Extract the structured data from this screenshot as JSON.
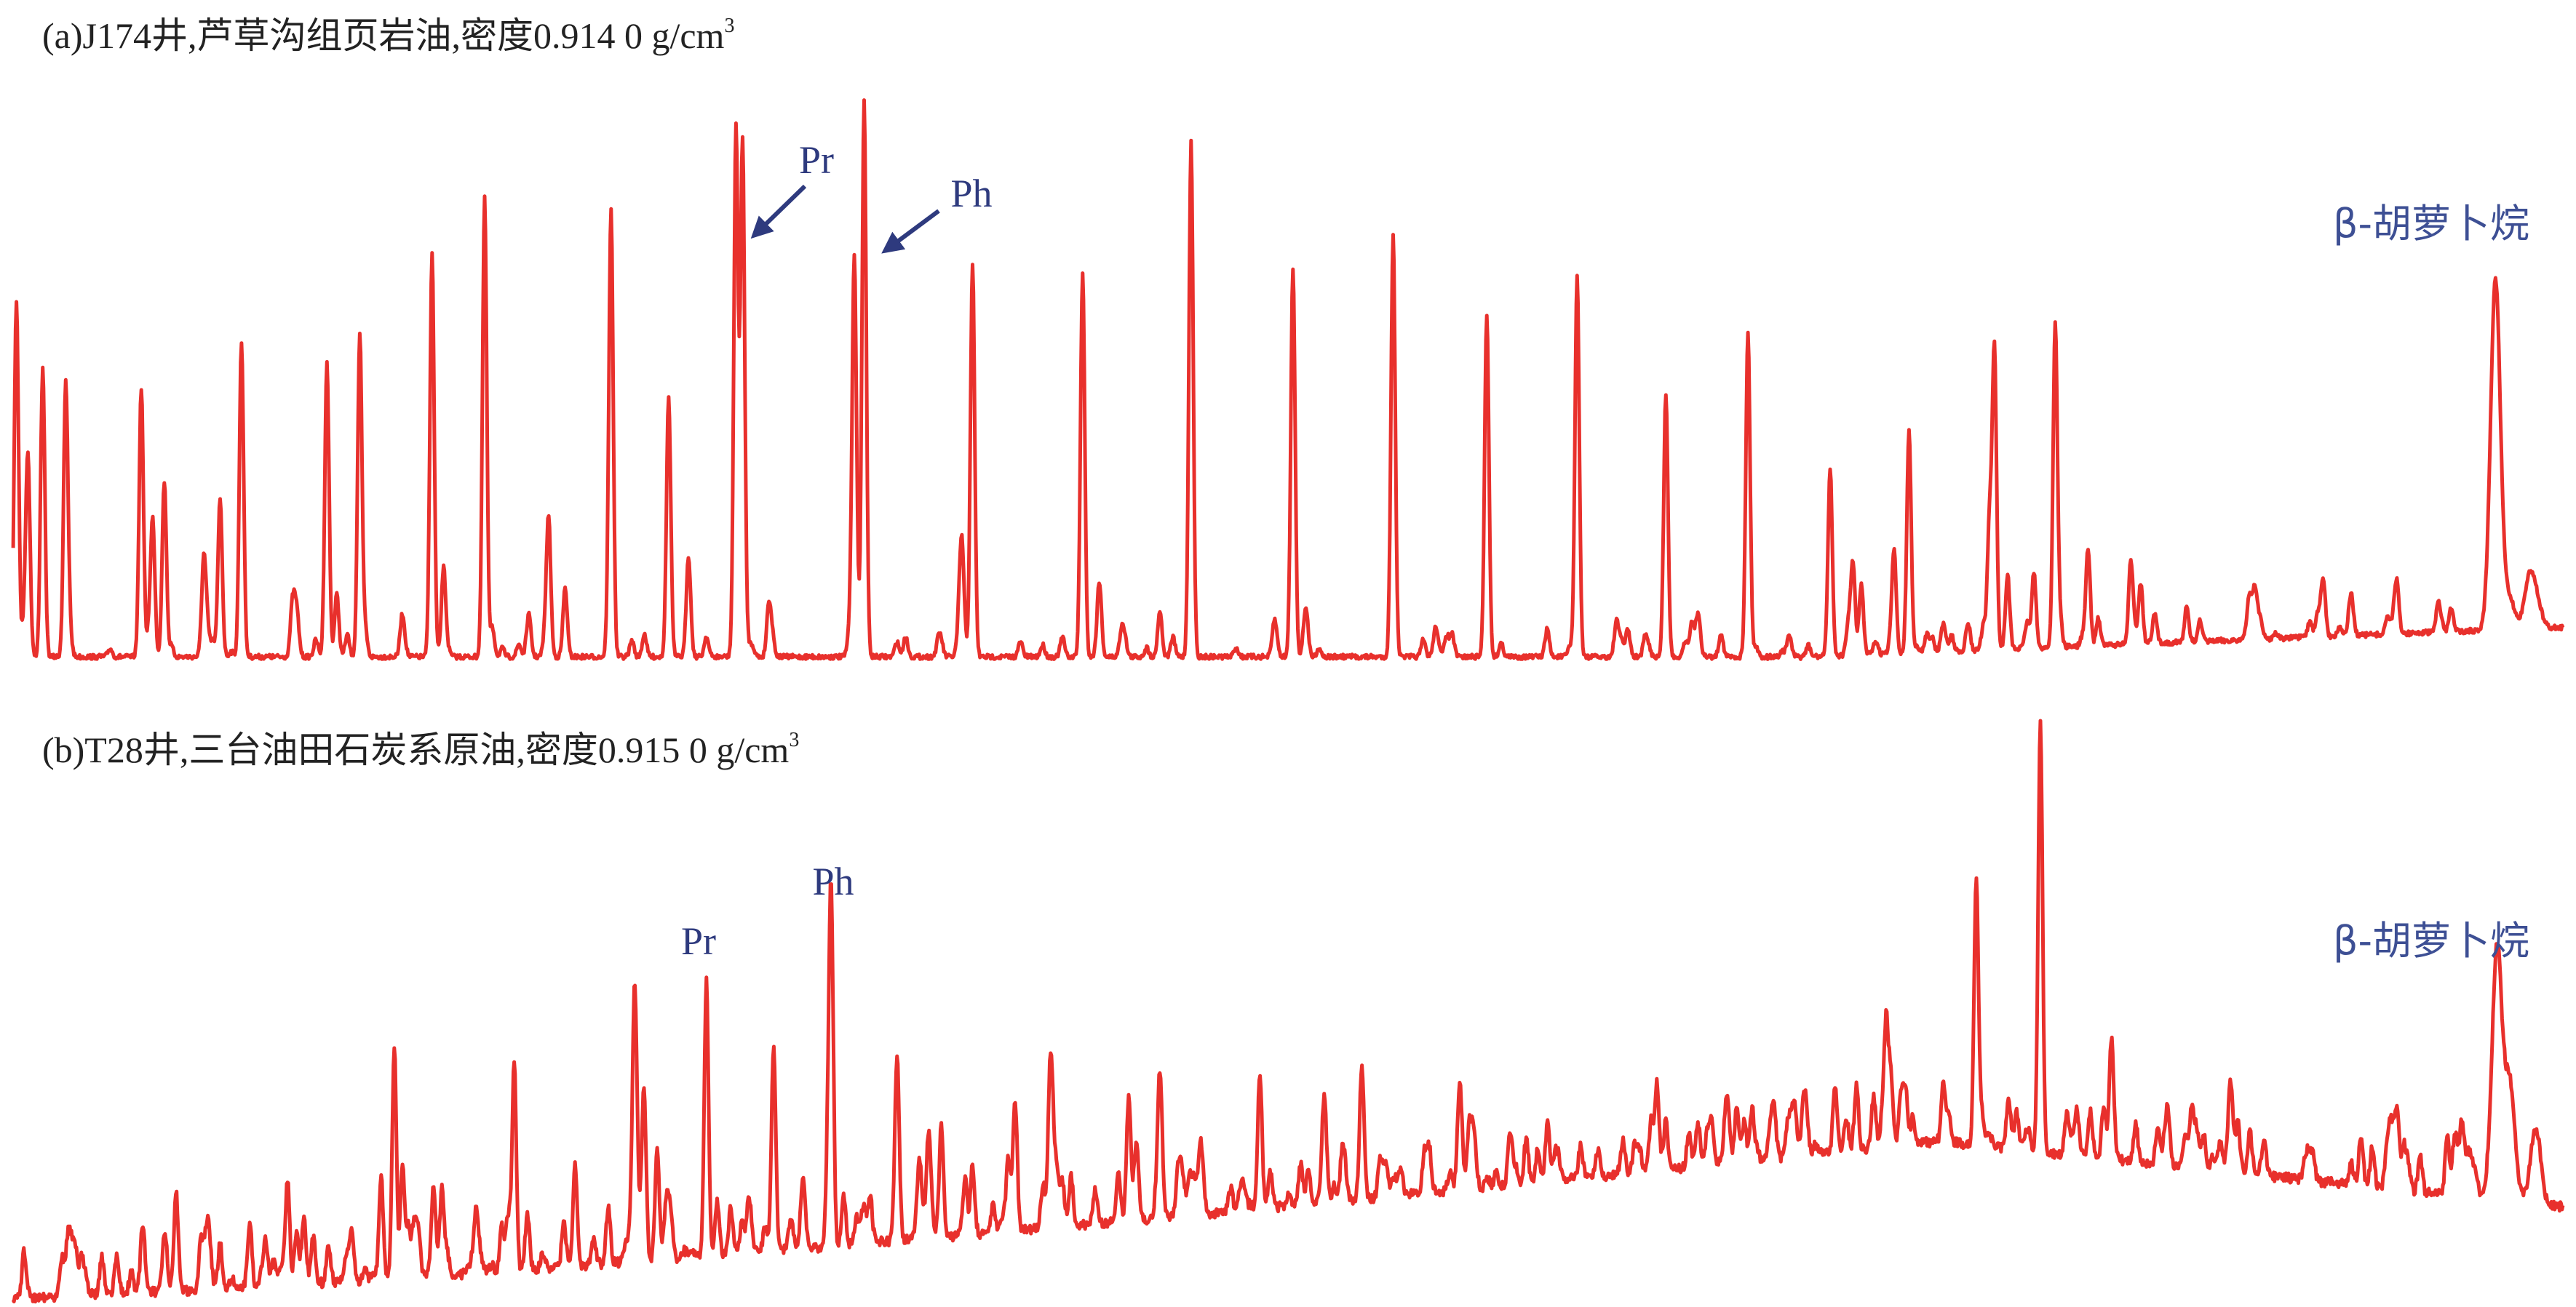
{
  "panels": [
    {
      "title": "(a)J174井,芦草沟组页岩油,密度0.914 0 g/cm",
      "title_sup": "3",
      "pr": "Pr",
      "ph": "Ph",
      "carotane": "β-胡萝卜烷"
    },
    {
      "title": "(b)T28井,三台油田石炭系原油,密度0.915 0 g/cm",
      "title_sup": "3",
      "pr": "Pr",
      "ph": "Ph",
      "carotane": "β-胡萝卜烷"
    }
  ]
}
